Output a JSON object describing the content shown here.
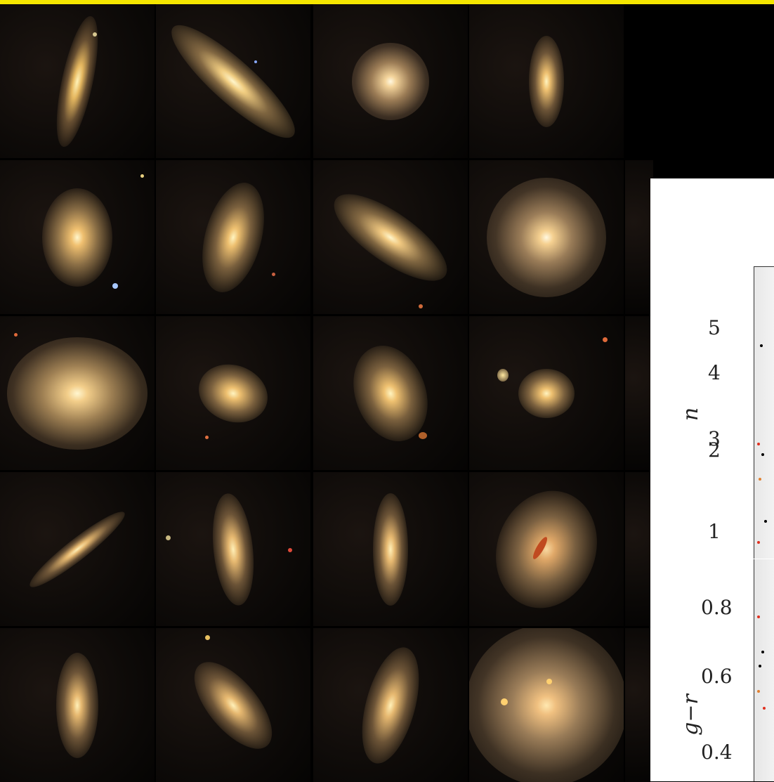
{
  "plot": {
    "panel_n": {
      "axis_label": "n",
      "ticks": [
        "5",
        "4",
        "3",
        "2",
        "1"
      ]
    },
    "panel_gr": {
      "axis_label": "g−r",
      "ticks": [
        "0.8",
        "0.6",
        "0.4"
      ]
    }
  },
  "colors": {
    "top_border": "#f5e600",
    "background": "#000000",
    "galaxy_core": "#fff2c0",
    "galaxy_halo": "#c8a470"
  }
}
